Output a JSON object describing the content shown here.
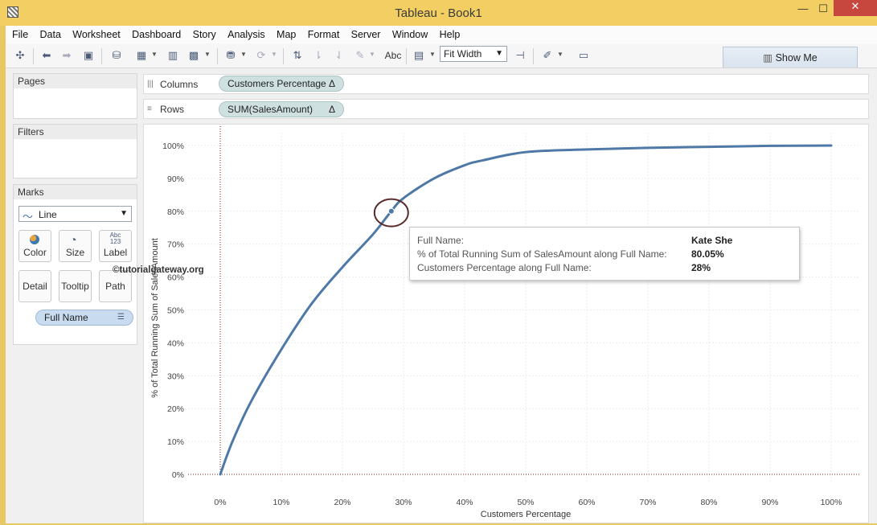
{
  "window": {
    "title": "Tableau - Book1",
    "minimize": "—",
    "maximize": "☐",
    "close": "✕"
  },
  "menu": [
    "File",
    "Data",
    "Worksheet",
    "Dashboard",
    "Story",
    "Analysis",
    "Map",
    "Format",
    "Server",
    "Window",
    "Help"
  ],
  "toolbar": {
    "fit_value": "Fit Width",
    "abc_label": "Abc",
    "show_me": "Show Me"
  },
  "panels": {
    "pages": "Pages",
    "filters": "Filters",
    "marks": {
      "title": "Marks",
      "type": "Line",
      "cards": [
        "Color",
        "Size",
        "Label",
        "Detail",
        "Tooltip",
        "Path"
      ],
      "field_pill": "Full Name"
    }
  },
  "shelves": {
    "columns_label": "Columns",
    "columns_pill": "Customers Percentage",
    "rows_label": "Rows",
    "rows_pill": "SUM(SalesAmount)",
    "delta": "Δ"
  },
  "watermark": "©tutorialgateway.org",
  "tooltip": {
    "rows": [
      {
        "label": "Full Name:",
        "value": "Kate She"
      },
      {
        "label": "% of Total Running Sum of SalesAmount along Full Name:",
        "value": "80.05%"
      },
      {
        "label": "Customers Percentage along Full Name:",
        "value": "28%"
      }
    ]
  },
  "chart_data": {
    "type": "line",
    "xlabel": "Customers Percentage",
    "ylabel": "% of Total Running Sum of SalesAmount",
    "xlim": [
      0,
      100
    ],
    "ylim": [
      0,
      100
    ],
    "x_ticks": [
      "0%",
      "10%",
      "20%",
      "30%",
      "40%",
      "50%",
      "60%",
      "70%",
      "80%",
      "90%",
      "100%"
    ],
    "y_ticks": [
      "0%",
      "10%",
      "20%",
      "30%",
      "40%",
      "50%",
      "60%",
      "70%",
      "80%",
      "90%",
      "100%"
    ],
    "grid": true,
    "series": [
      {
        "x": [
          0,
          2,
          5,
          10,
          15,
          20,
          25,
          28,
          30,
          35,
          40,
          43,
          50,
          60,
          70,
          80,
          90,
          100
        ],
        "y": [
          0,
          10,
          22,
          38,
          52,
          63,
          73,
          80.05,
          84,
          90,
          94,
          95.5,
          98,
          98.8,
          99.3,
          99.6,
          99.9,
          100
        ]
      }
    ],
    "highlighted_point": {
      "x": 28,
      "y": 80.05
    },
    "line_color": "#4e79a7",
    "reference_line_color": "#8b1a1a"
  }
}
